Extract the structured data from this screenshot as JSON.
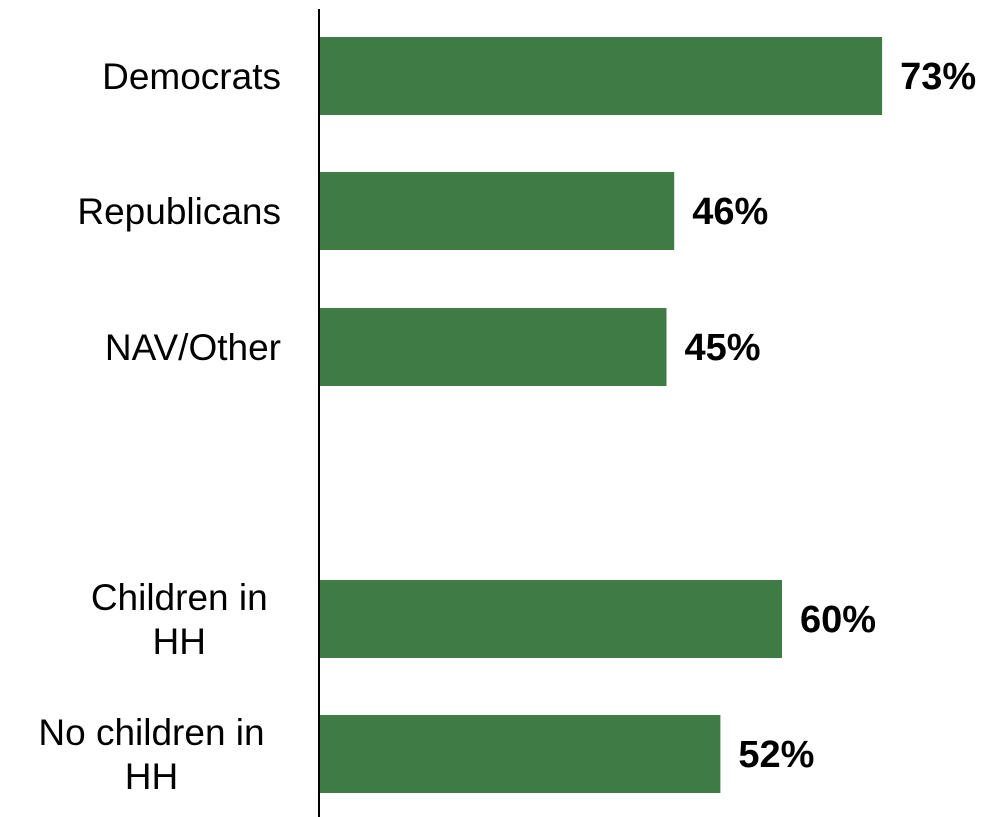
{
  "chart_data": {
    "type": "bar",
    "orientation": "horizontal",
    "categories": [
      [
        "Democrats"
      ],
      [
        "Republicans"
      ],
      [
        "NAV/Other"
      ],
      [
        "Children in",
        "HH"
      ],
      [
        "No children in",
        "HH"
      ]
    ],
    "values": [
      73,
      46,
      45,
      60,
      52
    ],
    "value_labels": [
      "73%",
      "46%",
      "45%",
      "60%",
      "52%"
    ],
    "title": "",
    "xlabel": "",
    "ylabel": "",
    "xlim": [
      0,
      100
    ],
    "grid": false,
    "legend": "none",
    "bar_color": "#3e7b45",
    "axis_color": "#000000"
  }
}
